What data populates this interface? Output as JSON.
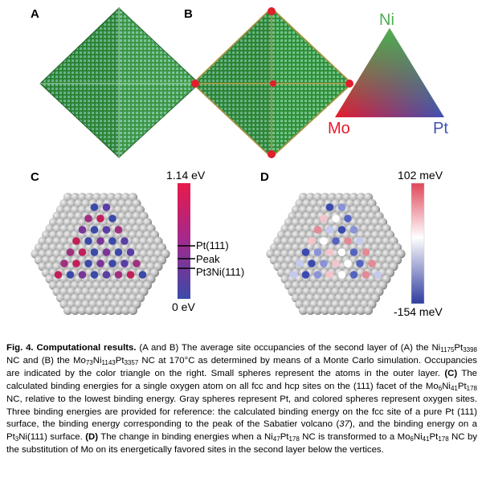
{
  "panels": {
    "a": "A",
    "b": "B",
    "c": "C",
    "d": "D"
  },
  "ternary": {
    "top": "Ni",
    "left": "Mo",
    "right": "Pt",
    "colors": {
      "Ni": "#4caf50",
      "Mo": "#e8192c",
      "Pt": "#3f51b5"
    }
  },
  "colorbar_c": {
    "top": "1.14 eV",
    "bottom": "0 eV",
    "refs": [
      "Pt(111)",
      "Peak",
      "Pt3Ni(111)"
    ]
  },
  "colorbar_d": {
    "top": "102 meV",
    "bottom": "-154 meV"
  },
  "caption": {
    "title": "Fig. 4. Computational results.",
    "part1": " (A and B) The average site occupancies of the second layer of (A) the Ni",
    "s1": "1175",
    "t1": "Pt",
    "s2": "3398",
    "t2": " NC and (B) the Mo",
    "s3": "73",
    "t3": "Ni",
    "s4": "1143",
    "t4": "Pt",
    "s5": "3357",
    "part2": " NC at 170°C as determined by means of a Monte Carlo simulation. Occupancies are indicated by the color triangle on the right. Small spheres represent the atoms in the outer layer. ",
    "c_label": "(C)",
    "part3": " The calculated binding energies for a single oxygen atom on all fcc and hcp sites on the (111) facet of the Mo",
    "s6": "6",
    "t6": "Ni",
    "s7": "41",
    "t7": "Pt",
    "s8": "178",
    "part4": " NC, relative to the lowest binding energy. Gray spheres represent Pt, and colored spheres represent oxygen sites. Three binding energies are provided for reference: the calculated binding energy on the fcc site of a pure Pt (111) surface, the binding energy corresponding to the peak of the Sabatier volcano (",
    "ref37": "37",
    "part5": "), and the binding energy on a Pt",
    "s9": "3",
    "part6": "Ni(111) surface. ",
    "d_label": "(D)",
    "part7": " The change in binding energies when a Ni",
    "s10": "47",
    "t10": "Pt",
    "s11": "178",
    "part8": " NC is transformed to a Mo",
    "s12": "6",
    "t12": "Ni",
    "s13": "41",
    "t13": "Pt",
    "s14": "178",
    "part9": " NC by the substitution of Mo on its energetically favored sites in the second layer below the vertices."
  }
}
